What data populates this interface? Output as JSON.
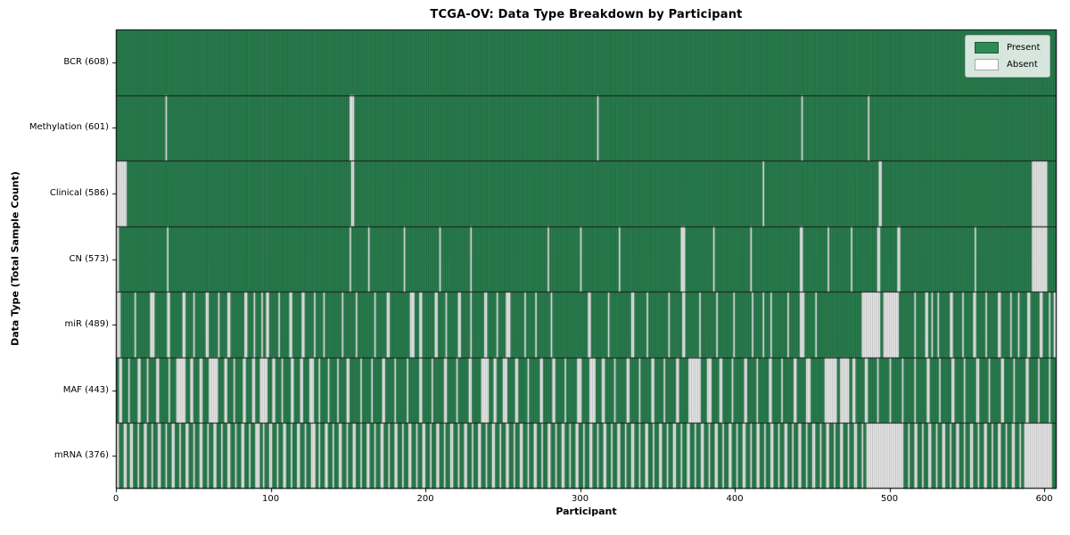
{
  "figure": {
    "title": "TCGA-OV: Data Type Breakdown by Participant"
  },
  "axes": {
    "x_label": "Participant",
    "y_label": "Data Type (Total Sample Count)",
    "x_ticks": [
      0,
      100,
      200,
      300,
      400,
      500,
      600
    ]
  },
  "legend": {
    "items": [
      {
        "label": "Present",
        "color": "#2e8b57"
      },
      {
        "label": "Absent",
        "color": "#ffffff"
      }
    ]
  },
  "colors": {
    "present": "#2e8b57",
    "absent": "#ffffff",
    "bar_edge": "rgba(0,0,0,0.45)",
    "row_separator": "#1a1a1a",
    "plot_border": "#000000"
  },
  "chart_data": {
    "type": "heatmap",
    "title": "TCGA-OV: Data Type Breakdown by Participant",
    "xlabel": "Participant",
    "ylabel": "Data Type (Total Sample Count)",
    "x_range": [
      0,
      608
    ],
    "n_participants": 608,
    "grid": false,
    "legend_position": "upper right",
    "legend_entries": [
      "Present",
      "Absent"
    ],
    "rows": [
      {
        "label": "BCR (608)",
        "data_type": "BCR",
        "present_count": 608,
        "absent_count": 0,
        "absent_ranges": []
      },
      {
        "label": "Methylation (601)",
        "data_type": "Methylation",
        "present_count": 601,
        "absent_count": 7,
        "absent_ranges": [
          32,
          1,
          151,
          3,
          311,
          1,
          443,
          1,
          486,
          1
        ]
      },
      {
        "label": "Clinical (586)",
        "data_type": "Clinical",
        "present_count": 586,
        "absent_count": 22,
        "absent_ranges": [
          0,
          7,
          152,
          2,
          418,
          1,
          493,
          2,
          592,
          10
        ]
      },
      {
        "label": "CN (573)",
        "data_type": "CN",
        "present_count": 573,
        "absent_count": 35,
        "absent_ranges": [
          0,
          2,
          33,
          1,
          151,
          1,
          163,
          1,
          186,
          1,
          209,
          1,
          229,
          1,
          279,
          1,
          300,
          1,
          325,
          1,
          365,
          3,
          386,
          1,
          410,
          1,
          442,
          2,
          460,
          1,
          475,
          1,
          492,
          2,
          505,
          2,
          555,
          1,
          592,
          10
        ]
      },
      {
        "label": "miR (489)",
        "data_type": "miR",
        "present_count": 489,
        "absent_count": 119,
        "absent_ranges": [
          0,
          3,
          12,
          1,
          22,
          3,
          33,
          2,
          43,
          2,
          50,
          1,
          58,
          2,
          66,
          1,
          72,
          2,
          83,
          2,
          89,
          1,
          94,
          1,
          97,
          2,
          105,
          1,
          112,
          2,
          120,
          2,
          128,
          1,
          134,
          1,
          146,
          1,
          155,
          1,
          167,
          1,
          175,
          2,
          190,
          3,
          196,
          2,
          206,
          2,
          213,
          1,
          221,
          2,
          229,
          1,
          238,
          2,
          246,
          1,
          252,
          3,
          264,
          1,
          271,
          1,
          281,
          1,
          305,
          2,
          318,
          1,
          333,
          2,
          343,
          1,
          357,
          1,
          366,
          2,
          377,
          1,
          388,
          1,
          399,
          1,
          411,
          1,
          418,
          1,
          423,
          1,
          434,
          1,
          442,
          3,
          452,
          1,
          482,
          12,
          496,
          10,
          516,
          1,
          523,
          2,
          527,
          1,
          531,
          1,
          539,
          2,
          547,
          1,
          554,
          2,
          562,
          1,
          570,
          2,
          578,
          1,
          583,
          1,
          589,
          2,
          597,
          2,
          603,
          1,
          606,
          2
        ]
      },
      {
        "label": "MAF (443)",
        "data_type": "MAF",
        "present_count": 443,
        "absent_count": 165,
        "absent_ranges": [
          2,
          2,
          8,
          1,
          14,
          2,
          20,
          1,
          26,
          2,
          34,
          1,
          39,
          6,
          48,
          2,
          54,
          2,
          60,
          6,
          70,
          2,
          76,
          1,
          82,
          2,
          88,
          2,
          93,
          5,
          101,
          2,
          107,
          1,
          113,
          2,
          119,
          2,
          125,
          3,
          131,
          1,
          137,
          1,
          143,
          1,
          149,
          2,
          158,
          1,
          165,
          1,
          172,
          2,
          180,
          1,
          188,
          1,
          196,
          2,
          204,
          1,
          212,
          2,
          220,
          1,
          228,
          2,
          236,
          5,
          244,
          2,
          250,
          3,
          258,
          2,
          266,
          1,
          274,
          2,
          282,
          2,
          290,
          1,
          298,
          3,
          306,
          4,
          314,
          2,
          322,
          1,
          330,
          2,
          338,
          1,
          346,
          2,
          354,
          1,
          362,
          2,
          370,
          8,
          382,
          3,
          390,
          2,
          398,
          1,
          406,
          2,
          414,
          1,
          422,
          2,
          430,
          1,
          438,
          2,
          446,
          3,
          458,
          8,
          468,
          6,
          476,
          2,
          484,
          2,
          492,
          1,
          500,
          1,
          508,
          1,
          516,
          1,
          524,
          2,
          532,
          1,
          540,
          2,
          548,
          1,
          556,
          2,
          564,
          1,
          572,
          2,
          580,
          1,
          588,
          2,
          596,
          1,
          603,
          1
        ]
      },
      {
        "label": "mRNA (376)",
        "data_type": "mRNA",
        "present_count": 376,
        "absent_count": 232,
        "absent_ranges": [
          0,
          2,
          5,
          2,
          9,
          2,
          14,
          1,
          18,
          2,
          23,
          1,
          27,
          2,
          32,
          1,
          36,
          2,
          41,
          1,
          45,
          2,
          50,
          1,
          54,
          2,
          59,
          1,
          63,
          2,
          68,
          1,
          72,
          2,
          77,
          1,
          81,
          2,
          86,
          1,
          90,
          3,
          95,
          1,
          99,
          2,
          104,
          1,
          108,
          2,
          113,
          1,
          117,
          2,
          122,
          1,
          126,
          3,
          131,
          1,
          135,
          2,
          140,
          1,
          144,
          2,
          149,
          1,
          153,
          2,
          158,
          1,
          162,
          2,
          167,
          1,
          171,
          2,
          176,
          1,
          180,
          2,
          185,
          1,
          189,
          2,
          194,
          1,
          198,
          2,
          203,
          1,
          207,
          2,
          212,
          1,
          216,
          2,
          221,
          1,
          225,
          2,
          230,
          1,
          234,
          2,
          239,
          1,
          243,
          2,
          248,
          1,
          252,
          2,
          257,
          1,
          261,
          2,
          266,
          1,
          270,
          2,
          275,
          1,
          279,
          2,
          284,
          1,
          288,
          2,
          293,
          1,
          297,
          2,
          302,
          1,
          306,
          2,
          311,
          1,
          315,
          2,
          320,
          1,
          324,
          2,
          329,
          1,
          333,
          2,
          338,
          1,
          342,
          2,
          347,
          1,
          351,
          2,
          356,
          1,
          360,
          2,
          365,
          1,
          369,
          2,
          374,
          1,
          378,
          2,
          383,
          1,
          387,
          2,
          392,
          1,
          396,
          2,
          401,
          1,
          405,
          2,
          410,
          1,
          414,
          2,
          419,
          1,
          423,
          2,
          428,
          1,
          432,
          2,
          437,
          1,
          441,
          2,
          446,
          1,
          450,
          2,
          455,
          1,
          459,
          2,
          464,
          1,
          468,
          2,
          473,
          1,
          477,
          2,
          482,
          1,
          485,
          24,
          512,
          1,
          516,
          2,
          521,
          1,
          525,
          2,
          530,
          1,
          534,
          2,
          539,
          1,
          543,
          2,
          548,
          1,
          552,
          2,
          557,
          1,
          561,
          2,
          566,
          1,
          570,
          2,
          575,
          1,
          579,
          2,
          584,
          1,
          587,
          18
        ]
      }
    ]
  }
}
